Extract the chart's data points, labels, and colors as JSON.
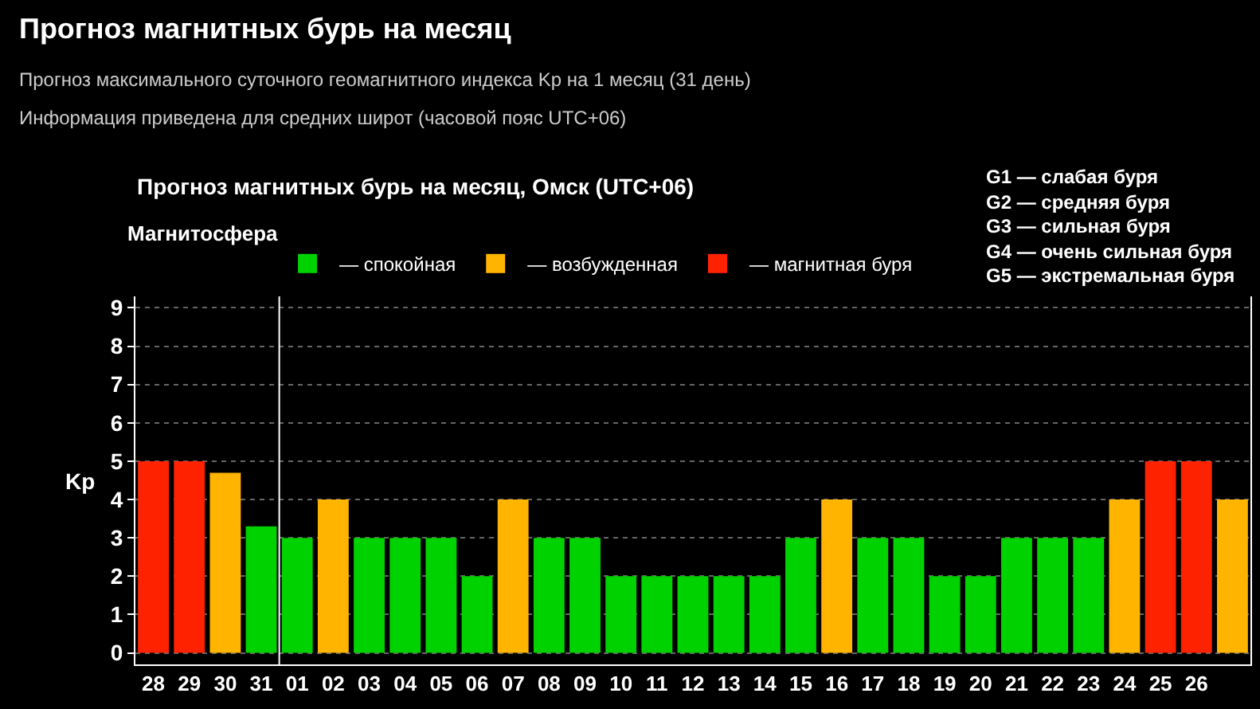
{
  "chart_data": {
    "type": "bar",
    "title": "Прогноз магнитных бурь на месяц",
    "subtitle": "Прогноз максимального суточного геомагнитного индекса Kp на 1 месяц (31 день)\nИнформация приведена для средних широт (часовой пояс UTC+06)",
    "annotations": [
      "Прогноз магнитных бурь на месяц, Омск (UTC+06)",
      "G1 — слабая буря",
      "G2 — средняя буря",
      "G3 — сильная буря",
      "G4 — очень сильная буря",
      "G5 — экстремальная буря"
    ],
    "ylabel": "Kp",
    "legend_title": "Магнитосфера",
    "categories": [
      "28",
      "29",
      "30",
      "31",
      "01",
      "02",
      "03",
      "04",
      "05",
      "06",
      "07",
      "08",
      "09",
      "10",
      "11",
      "12",
      "13",
      "14",
      "15",
      "16",
      "17",
      "18",
      "19",
      "20",
      "21",
      "22",
      "23",
      "24",
      "25",
      "26",
      null
    ],
    "series": [
      {
        "name": "— спокойная",
        "color": "#00d200",
        "values": [
          null,
          null,
          null,
          3.3,
          3,
          null,
          3,
          3,
          3,
          2,
          null,
          3,
          3,
          2,
          2,
          2,
          2,
          2,
          3,
          null,
          3,
          3,
          2,
          2,
          3,
          3,
          3,
          null,
          null,
          null,
          null
        ]
      },
      {
        "name": "— возбужденная",
        "color": "#ffb400",
        "values": [
          null,
          null,
          4.7,
          null,
          null,
          4,
          null,
          null,
          null,
          null,
          4,
          null,
          null,
          null,
          null,
          null,
          null,
          null,
          null,
          4,
          null,
          null,
          null,
          null,
          null,
          null,
          null,
          4,
          null,
          null,
          4
        ]
      },
      {
        "name": "— магнитная буря",
        "color": "#ff2200",
        "values": [
          5,
          5,
          null,
          null,
          null,
          null,
          null,
          null,
          null,
          null,
          null,
          null,
          null,
          null,
          null,
          null,
          null,
          null,
          null,
          null,
          null,
          null,
          null,
          null,
          null,
          null,
          null,
          null,
          5,
          5,
          null
        ]
      }
    ],
    "ylim": [
      -0.3,
      9.3
    ],
    "yticks": [
      0,
      1,
      2,
      3,
      4,
      5,
      6,
      7,
      8,
      9
    ],
    "grid": "y",
    "legend": "top left",
    "ref_lines": [
      {
        "axis": "x",
        "value": "01",
        "color": "#ffffff"
      }
    ]
  }
}
